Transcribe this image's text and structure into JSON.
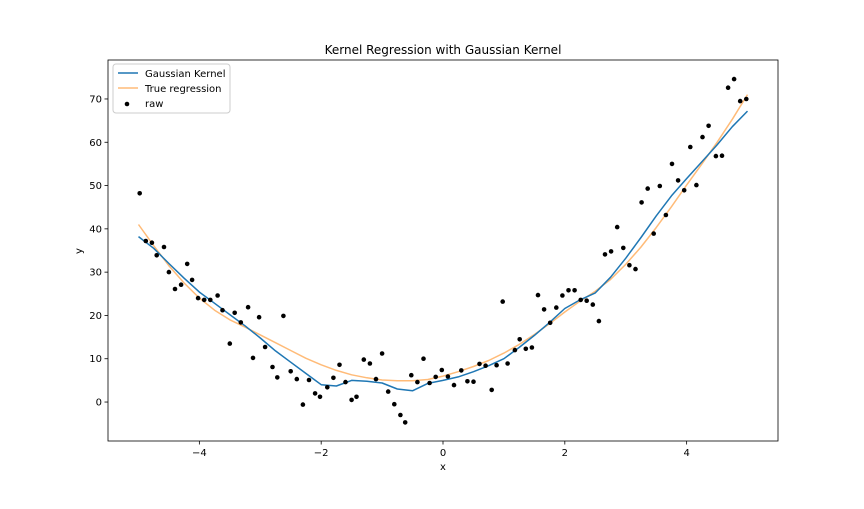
{
  "chart_data": {
    "type": "scatter",
    "title": "Kernel Regression with Gaussian Kernel",
    "xlabel": "x",
    "ylabel": "y",
    "xlim": [
      -5.5,
      5.5
    ],
    "ylim": [
      -9,
      79
    ],
    "xticks": [
      -4,
      -2,
      0,
      2,
      4
    ],
    "xtick_labels": [
      "−4",
      "−2",
      "0",
      "2",
      "4"
    ],
    "yticks": [
      0,
      10,
      20,
      30,
      40,
      50,
      60,
      70
    ],
    "ytick_labels": [
      "0",
      "10",
      "20",
      "30",
      "40",
      "50",
      "60",
      "70"
    ],
    "grid": false,
    "legend_position": "top-left",
    "series": [
      {
        "name": "Gaussian Kernel",
        "kind": "line",
        "color": "#1f77b4",
        "x": [
          -5.0,
          -4.75,
          -4.5,
          -4.25,
          -4.0,
          -3.75,
          -3.5,
          -3.25,
          -3.0,
          -2.75,
          -2.5,
          -2.25,
          -2.0,
          -1.75,
          -1.5,
          -1.25,
          -1.0,
          -0.75,
          -0.5,
          -0.25,
          0.0,
          0.25,
          0.5,
          0.75,
          1.0,
          1.25,
          1.5,
          1.75,
          2.0,
          2.25,
          2.5,
          2.75,
          3.0,
          3.25,
          3.5,
          3.75,
          4.0,
          4.25,
          4.5,
          4.75,
          5.0
        ],
        "y": [
          38.2,
          35.5,
          32.0,
          28.6,
          25.4,
          22.8,
          20.2,
          17.6,
          14.8,
          11.8,
          9.2,
          6.6,
          4.0,
          3.7,
          5.0,
          4.8,
          4.4,
          3.0,
          2.6,
          4.3,
          5.0,
          5.8,
          7.0,
          8.4,
          10.0,
          12.6,
          15.4,
          18.4,
          21.6,
          23.6,
          25.2,
          28.8,
          33.2,
          38.0,
          43.0,
          47.6,
          51.6,
          55.5,
          59.4,
          63.6,
          67.2
        ]
      },
      {
        "name": "True regression",
        "kind": "line",
        "color": "#ffbb78",
        "x": [
          -5.0,
          -4.75,
          -4.5,
          -4.25,
          -4.0,
          -3.75,
          -3.5,
          -3.25,
          -3.0,
          -2.75,
          -2.5,
          -2.25,
          -2.0,
          -1.75,
          -1.5,
          -1.25,
          -1.0,
          -0.75,
          -0.5,
          -0.25,
          0.0,
          0.25,
          0.5,
          0.75,
          1.0,
          1.25,
          1.5,
          1.75,
          2.0,
          2.25,
          2.5,
          2.75,
          3.0,
          3.25,
          3.5,
          3.75,
          4.0,
          4.25,
          4.5,
          4.75,
          5.0
        ],
        "y": [
          41.0,
          36.1,
          31.5,
          27.5,
          24.0,
          21.2,
          19.0,
          17.3,
          15.5,
          13.7,
          11.9,
          10.1,
          8.6,
          7.3,
          6.3,
          5.6,
          5.1,
          4.9,
          4.9,
          5.2,
          6.0,
          7.0,
          8.2,
          9.6,
          11.3,
          13.3,
          15.6,
          18.1,
          20.8,
          23.3,
          25.6,
          28.3,
          31.8,
          35.8,
          40.3,
          45.1,
          50.1,
          55.0,
          60.0,
          65.3,
          71.0
        ]
      },
      {
        "name": "raw",
        "kind": "scatter",
        "color": "#000000",
        "x": [
          -4.98,
          -4.88,
          -4.78,
          -4.7,
          -4.58,
          -4.5,
          -4.4,
          -4.3,
          -4.2,
          -4.12,
          -4.02,
          -3.92,
          -3.82,
          -3.7,
          -3.62,
          -3.5,
          -3.42,
          -3.32,
          -3.2,
          -3.12,
          -3.02,
          -2.92,
          -2.8,
          -2.72,
          -2.62,
          -2.5,
          -2.4,
          -2.3,
          -2.2,
          -2.1,
          -2.02,
          -1.9,
          -1.8,
          -1.7,
          -1.6,
          -1.5,
          -1.42,
          -1.3,
          -1.2,
          -1.1,
          -1.0,
          -0.9,
          -0.8,
          -0.7,
          -0.62,
          -0.52,
          -0.42,
          -0.32,
          -0.22,
          -0.12,
          -0.02,
          0.08,
          0.18,
          0.3,
          0.4,
          0.5,
          0.6,
          0.7,
          0.8,
          0.88,
          0.98,
          1.06,
          1.18,
          1.26,
          1.36,
          1.46,
          1.56,
          1.66,
          1.76,
          1.86,
          1.96,
          2.06,
          2.16,
          2.26,
          2.36,
          2.46,
          2.56,
          2.66,
          2.76,
          2.86,
          2.96,
          3.06,
          3.16,
          3.26,
          3.36,
          3.46,
          3.56,
          3.66,
          3.76,
          3.86,
          3.96,
          4.06,
          4.16,
          4.26,
          4.36,
          4.48,
          4.58,
          4.68,
          4.78,
          4.88,
          4.98
        ],
        "y": [
          48.2,
          37.2,
          36.8,
          33.9,
          35.8,
          30.0,
          26.1,
          27.1,
          31.9,
          28.2,
          24.0,
          23.6,
          23.6,
          24.6,
          21.2,
          13.5,
          20.6,
          18.4,
          21.9,
          10.2,
          19.6,
          12.7,
          8.1,
          5.7,
          19.9,
          7.1,
          5.3,
          -0.6,
          5.1,
          2.0,
          1.2,
          3.4,
          5.6,
          8.6,
          4.6,
          0.5,
          1.2,
          9.8,
          8.9,
          5.3,
          11.2,
          2.4,
          -0.5,
          -3.0,
          -4.7,
          6.2,
          4.6,
          10.0,
          4.4,
          5.8,
          7.4,
          5.9,
          3.9,
          7.3,
          4.8,
          4.7,
          8.8,
          8.4,
          2.8,
          8.5,
          23.2,
          8.9,
          12.0,
          14.5,
          12.3,
          12.6,
          24.7,
          21.4,
          18.3,
          21.8,
          24.6,
          25.8,
          25.8,
          23.6,
          23.4,
          22.5,
          18.7,
          34.1,
          34.8,
          40.4,
          35.6,
          31.6,
          30.7,
          46.1,
          49.3,
          38.9,
          49.9,
          43.2,
          55.0,
          51.2,
          48.9,
          58.9,
          50.1,
          61.2,
          63.8,
          56.8,
          56.9,
          72.6,
          74.6,
          69.5,
          70.0
        ]
      }
    ]
  }
}
